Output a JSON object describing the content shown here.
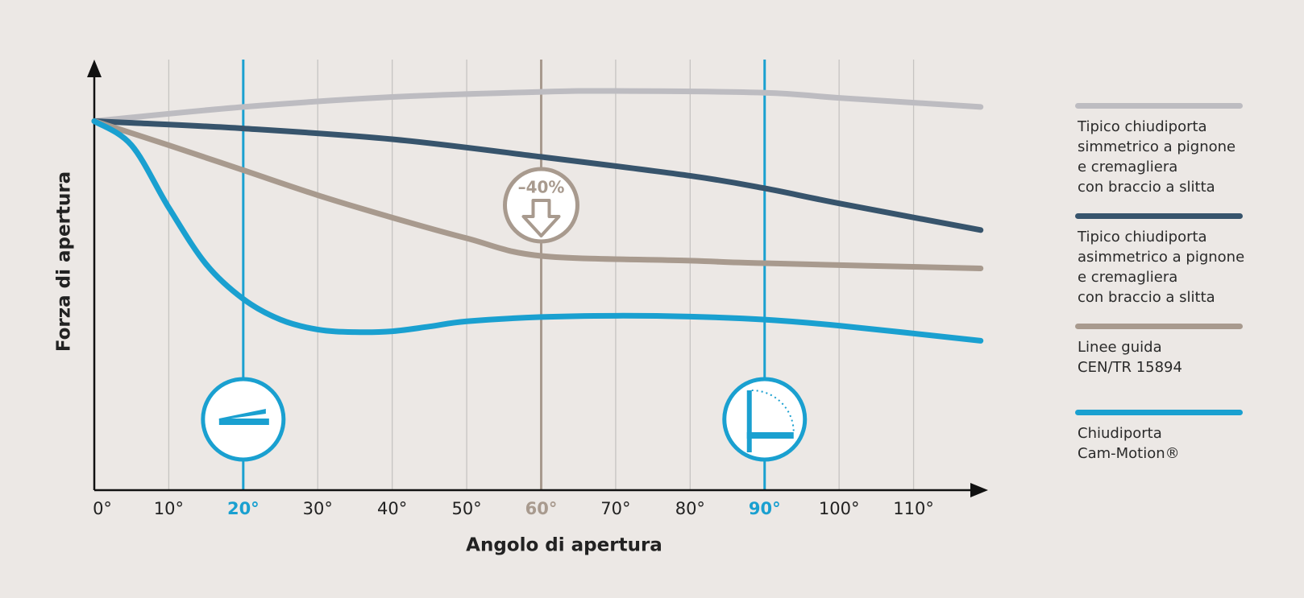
{
  "chart_data": {
    "type": "line",
    "xlabel": "Angolo di apertura",
    "ylabel": "Forza di apertura",
    "xlim": [
      0,
      120
    ],
    "ylim": [
      0,
      100
    ],
    "xticks": [
      {
        "value": 0,
        "label": "0°"
      },
      {
        "value": 10,
        "label": "10°"
      },
      {
        "value": 20,
        "label": "20°",
        "color": "#1aa0d0"
      },
      {
        "value": 30,
        "label": "30°"
      },
      {
        "value": 40,
        "label": "40°"
      },
      {
        "value": 50,
        "label": "50°"
      },
      {
        "value": 60,
        "label": "60°",
        "color": "#a89a8e"
      },
      {
        "value": 70,
        "label": "70°"
      },
      {
        "value": 80,
        "label": "80°"
      },
      {
        "value": 90,
        "label": "90°",
        "color": "#1aa0d0"
      },
      {
        "value": 100,
        "label": "100°"
      },
      {
        "value": 110,
        "label": "110°"
      }
    ],
    "grid": true,
    "annotation": "–40%",
    "series": [
      {
        "name": "Tipico chiudiporta\nsimmetrico a pignone\ne cremagliera\ncon braccio a slitta",
        "color": "#bdbcc1",
        "x": [
          0,
          20,
          40,
          60,
          70,
          90,
          100,
          119
        ],
        "values": [
          85.7,
          89,
          91.3,
          92.5,
          92.7,
          92.3,
          91.1,
          89
        ]
      },
      {
        "name": "Tipico chiudiporta\nasimmetrico a pignone\ne cremagliera\ncon braccio a slitta",
        "color": "#37546c",
        "x": [
          0,
          5,
          20,
          40,
          60,
          80,
          90,
          100,
          119
        ],
        "values": [
          85.7,
          85.3,
          84,
          81.5,
          77.4,
          73,
          70.1,
          66.6,
          60.4
        ]
      },
      {
        "name": "Linee guida\nCEN/TR 15894",
        "color": "#a89a8e",
        "x": [
          0,
          10,
          20,
          30,
          40,
          50,
          60,
          80,
          90,
          119
        ],
        "values": [
          85.7,
          80.1,
          74.3,
          68.5,
          63.3,
          58.5,
          54.4,
          53.3,
          52.7,
          51.5
        ]
      },
      {
        "name": "Chiudiporta\nCam-Motion®",
        "color": "#1aa0d0",
        "x": [
          0,
          5,
          10,
          15,
          20,
          25,
          30,
          35,
          40,
          45,
          50,
          60,
          70,
          80,
          90,
          100,
          119
        ],
        "values": [
          85.7,
          80.1,
          65.6,
          52.5,
          44.4,
          39.6,
          37.3,
          36.7,
          36.9,
          38,
          39.2,
          40.2,
          40.5,
          40.3,
          39.6,
          38.2,
          34.7
        ]
      }
    ]
  }
}
